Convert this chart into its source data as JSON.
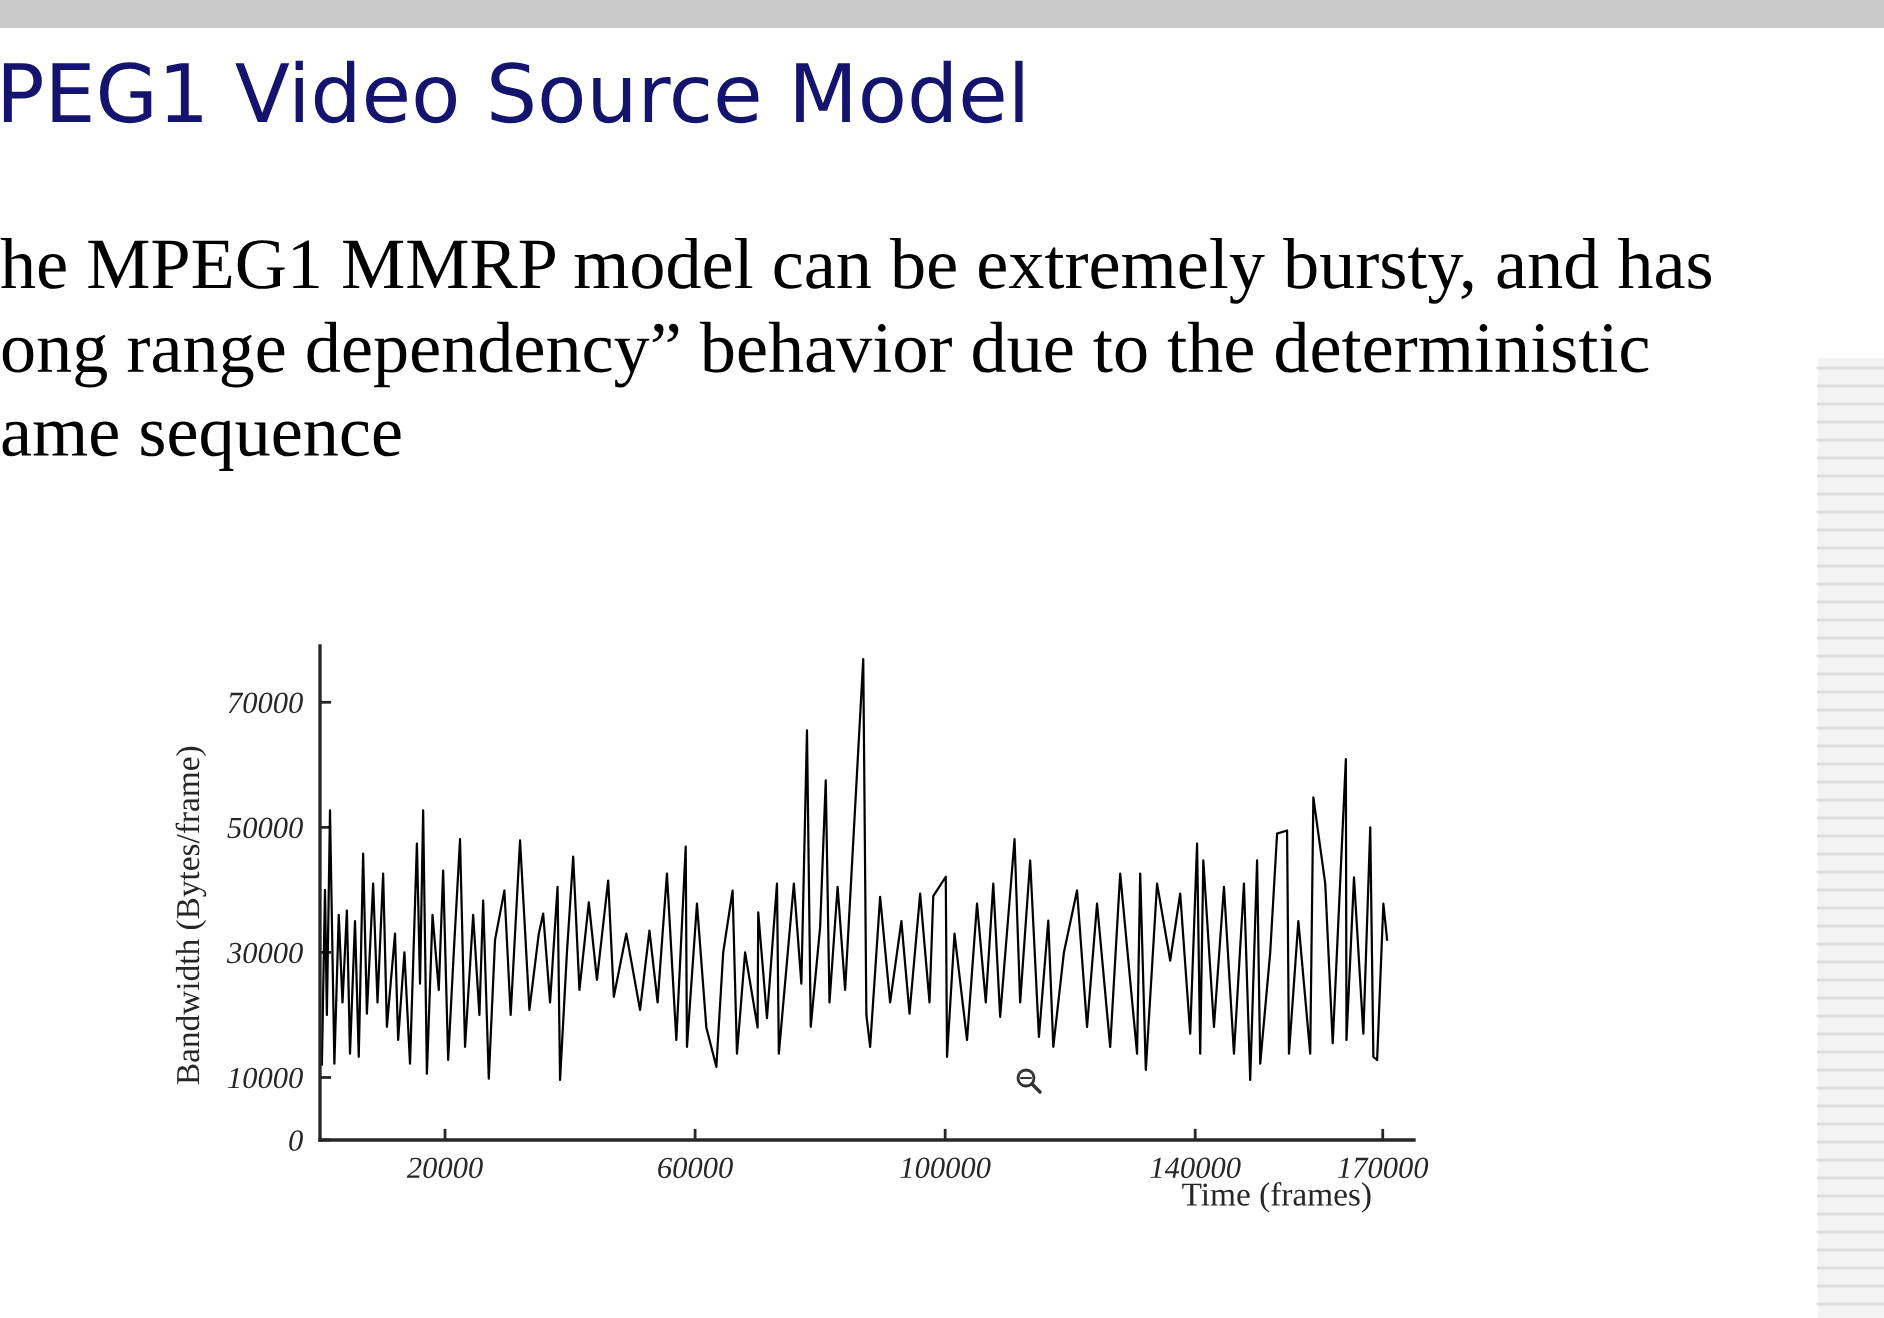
{
  "chart_data": {
    "type": "line",
    "title": "PEG1 Video Source Model",
    "subtitle": "he MPEG1 MMRP model can be extremely bursty, and has\nong range dependency” behavior due to the deterministic\name sequence",
    "xlabel": "Time (frames)",
    "ylabel": "Bandwidth (Bytes/frame)",
    "x": [
      300,
      800,
      1100,
      1600,
      2300,
      3000,
      3600,
      4300,
      4800,
      5600,
      6200,
      6900,
      7500,
      8500,
      9200,
      10100,
      10700,
      12000,
      12500,
      13500,
      14400,
      15500,
      16000,
      16500,
      17100,
      18000,
      19000,
      19700,
      20500,
      21400,
      22400,
      23200,
      24500,
      25500,
      26100,
      27000,
      28000,
      29500,
      30500,
      32000,
      33500,
      35000,
      35700,
      36800,
      38000,
      38400,
      39500,
      40500,
      41500,
      43000,
      44300,
      46100,
      47000,
      49000,
      51200,
      52700,
      54000,
      55500,
      57000,
      58500,
      58700,
      60300,
      61800,
      63400,
      64500,
      66000,
      66700,
      68000,
      70000,
      70100,
      71500,
      73100,
      73400,
      75800,
      77000,
      77900,
      78500,
      80000,
      80900,
      81500,
      82800,
      84000,
      86900,
      87400,
      88000,
      89600,
      91200,
      93000,
      94300,
      96000,
      97500,
      98100,
      100100,
      100300,
      101500,
      103500,
      105100,
      106500,
      107700,
      108800,
      111100,
      112000,
      113600,
      115000,
      116500,
      117300,
      119000,
      121100,
      122700,
      124300,
      126400,
      128000,
      130700,
      131200,
      132100,
      133900,
      136000,
      137600,
      139200,
      140300,
      140800,
      141300,
      143000,
      144600,
      146200,
      147800,
      148800,
      149900,
      150400,
      152000,
      153100,
      154700,
      155000,
      156500,
      158400,
      158900,
      160800,
      162000,
      164100,
      164200,
      165400,
      166900,
      168000,
      168500,
      169100,
      170100,
      170700
    ],
    "series": [
      {
        "color": "#000000",
        "values": [
          12000,
          40000,
          20000,
          52700,
          12200,
          36000,
          22000,
          36700,
          13800,
          35000,
          13300,
          45800,
          20200,
          41000,
          22000,
          42600,
          18100,
          33000,
          16000,
          30000,
          12200,
          47400,
          25000,
          52700,
          10600,
          36000,
          24000,
          43100,
          12800,
          30000,
          48100,
          14900,
          36000,
          20000,
          38300,
          9800,
          32000,
          39900,
          20000,
          47900,
          20800,
          33000,
          36200,
          22000,
          40500,
          9600,
          30000,
          45300,
          24000,
          38000,
          25600,
          41500,
          22900,
          33000,
          20800,
          33500,
          22000,
          42600,
          16000,
          46900,
          14900,
          37800,
          18000,
          11700,
          30000,
          39900,
          13800,
          30000,
          18000,
          36400,
          19500,
          41000,
          13800,
          41000,
          25000,
          65500,
          18100,
          34000,
          57500,
          22000,
          40500,
          24000,
          76900,
          20000,
          14900,
          38900,
          22000,
          35000,
          20200,
          39400,
          22000,
          39000,
          42100,
          13300,
          33000,
          16000,
          37800,
          22000,
          41000,
          19700,
          48100,
          22000,
          44700,
          16500,
          35100,
          14900,
          30000,
          39900,
          18100,
          37800,
          14900,
          42600,
          13800,
          42600,
          11200,
          41000,
          28700,
          39400,
          17000,
          47400,
          13800,
          44700,
          18100,
          40500,
          13800,
          41000,
          9600,
          44700,
          12200,
          30000,
          49000,
          49500,
          13800,
          35000,
          13800,
          54800,
          41000,
          15500,
          60900,
          16000,
          42000,
          17000,
          50000,
          13300,
          12800,
          37800,
          32000
        ]
      }
    ],
    "xlim": [
      0,
      175000
    ],
    "ylim": [
      0,
      79000
    ],
    "xticks": [
      20000,
      60000,
      100000,
      140000,
      170000
    ],
    "yticks": [
      0,
      10000,
      30000,
      50000,
      70000
    ],
    "line_style": "solid"
  }
}
